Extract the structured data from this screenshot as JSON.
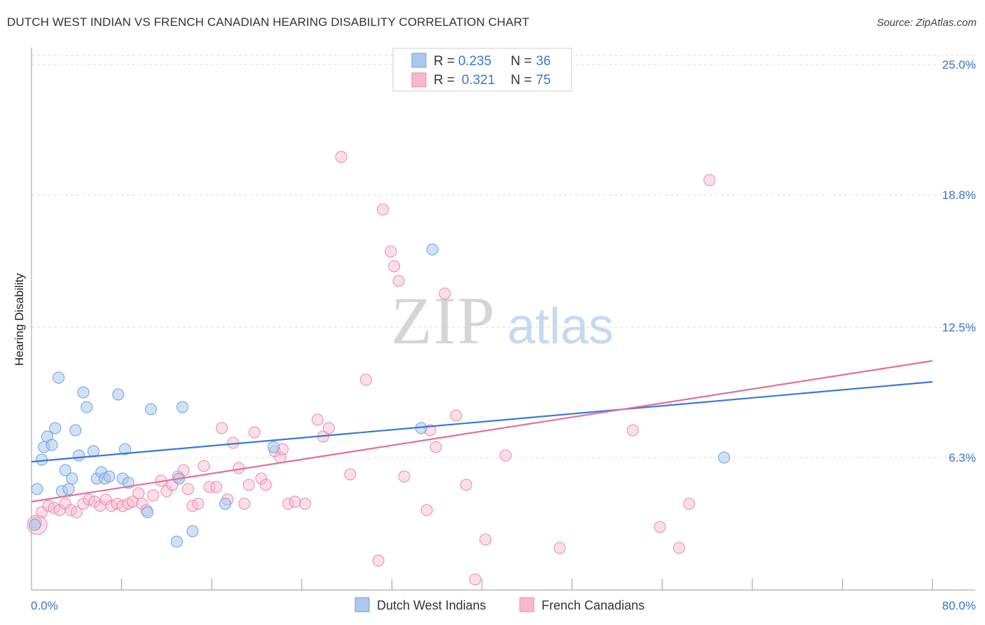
{
  "title": "DUTCH WEST INDIAN VS FRENCH CANADIAN HEARING DISABILITY CORRELATION CHART",
  "source": "Source: ZipAtlas.com",
  "watermark": {
    "zip": "ZIP",
    "atlas": "atlas"
  },
  "colors": {
    "blue": "#3a78d4",
    "blue_fill": "#aac8f0",
    "pink": "#e0709a",
    "pink_fill": "#f6b8cc",
    "tick_text": "#3b73c4"
  },
  "legend": {
    "r_label": "R =",
    "n_label": "N =",
    "rows": [
      {
        "series": "Dutch West Indians",
        "r": "0.235",
        "n": "36"
      },
      {
        "series": "French Canadians",
        "r": "0.321",
        "n": "75"
      }
    ]
  },
  "chart_data": {
    "type": "scatter",
    "title": "DUTCH WEST INDIAN VS FRENCH CANADIAN HEARING DISABILITY CORRELATION CHART",
    "xlabel": "",
    "ylabel": "Hearing Disability",
    "xlim": [
      0,
      80
    ],
    "ylim": [
      0,
      25.8
    ],
    "x_tick_labels": [
      "0.0%",
      "80.0%"
    ],
    "y_ticks": [
      6.3,
      12.5,
      18.8,
      25.0
    ],
    "y_tick_labels": [
      "6.3%",
      "12.5%",
      "18.8%",
      "25.0%"
    ],
    "grid": "horizontal dashed",
    "series": [
      {
        "name": "Dutch West Indians",
        "color": "#3a78d4",
        "trend": {
          "x": [
            0,
            80
          ],
          "y": [
            6.1,
            9.9
          ]
        },
        "points": [
          [
            0.3,
            3.1
          ],
          [
            0.5,
            4.8
          ],
          [
            0.9,
            6.2
          ],
          [
            1.1,
            6.8
          ],
          [
            1.4,
            7.3
          ],
          [
            1.8,
            6.9
          ],
          [
            2.1,
            7.7
          ],
          [
            2.4,
            10.1
          ],
          [
            2.7,
            4.7
          ],
          [
            3.0,
            5.7
          ],
          [
            3.3,
            4.8
          ],
          [
            3.6,
            5.3
          ],
          [
            3.9,
            7.6
          ],
          [
            4.2,
            6.4
          ],
          [
            4.6,
            9.4
          ],
          [
            4.9,
            8.7
          ],
          [
            5.5,
            6.6
          ],
          [
            5.8,
            5.3
          ],
          [
            6.2,
            5.6
          ],
          [
            6.5,
            5.3
          ],
          [
            6.9,
            5.4
          ],
          [
            7.7,
            9.3
          ],
          [
            8.1,
            5.3
          ],
          [
            8.3,
            6.7
          ],
          [
            8.6,
            5.1
          ],
          [
            10.3,
            3.7
          ],
          [
            10.6,
            8.6
          ],
          [
            12.9,
            2.3
          ],
          [
            13.1,
            5.3
          ],
          [
            13.4,
            8.7
          ],
          [
            14.3,
            2.8
          ],
          [
            17.2,
            4.1
          ],
          [
            21.5,
            6.8
          ],
          [
            34.6,
            7.7
          ],
          [
            35.6,
            16.2
          ],
          [
            61.5,
            6.3
          ]
        ]
      },
      {
        "name": "French Canadians",
        "color": "#e0709a",
        "trend": {
          "x": [
            0,
            80
          ],
          "y": [
            4.2,
            10.9
          ]
        },
        "points": [
          [
            0.4,
            3.2
          ],
          [
            0.9,
            3.7
          ],
          [
            1.5,
            4.0
          ],
          [
            2.0,
            3.9
          ],
          [
            2.5,
            3.8
          ],
          [
            3.0,
            4.1
          ],
          [
            3.5,
            3.8
          ],
          [
            4.0,
            3.7
          ],
          [
            4.6,
            4.1
          ],
          [
            5.1,
            4.3
          ],
          [
            5.6,
            4.2
          ],
          [
            6.1,
            4.0
          ],
          [
            6.6,
            4.3
          ],
          [
            7.1,
            4.0
          ],
          [
            7.6,
            4.1
          ],
          [
            8.1,
            4.0
          ],
          [
            8.6,
            4.1
          ],
          [
            9.0,
            4.2
          ],
          [
            9.5,
            4.6
          ],
          [
            9.8,
            4.1
          ],
          [
            10.2,
            3.8
          ],
          [
            10.8,
            4.5
          ],
          [
            11.5,
            5.2
          ],
          [
            12.0,
            4.7
          ],
          [
            12.5,
            5.0
          ],
          [
            13.0,
            5.4
          ],
          [
            13.5,
            5.7
          ],
          [
            13.9,
            4.8
          ],
          [
            14.3,
            4.0
          ],
          [
            14.8,
            4.1
          ],
          [
            15.3,
            5.9
          ],
          [
            15.8,
            4.9
          ],
          [
            16.4,
            4.9
          ],
          [
            16.9,
            7.7
          ],
          [
            17.4,
            4.3
          ],
          [
            17.9,
            7.0
          ],
          [
            18.4,
            5.8
          ],
          [
            18.9,
            4.1
          ],
          [
            19.3,
            5.0
          ],
          [
            19.8,
            7.5
          ],
          [
            20.4,
            5.3
          ],
          [
            20.8,
            5.0
          ],
          [
            21.6,
            6.6
          ],
          [
            22.1,
            6.3
          ],
          [
            22.3,
            6.7
          ],
          [
            22.8,
            4.1
          ],
          [
            23.4,
            4.2
          ],
          [
            24.3,
            4.1
          ],
          [
            25.4,
            8.1
          ],
          [
            25.9,
            7.3
          ],
          [
            26.4,
            7.7
          ],
          [
            27.5,
            20.6
          ],
          [
            28.3,
            5.5
          ],
          [
            29.7,
            10.0
          ],
          [
            30.8,
            1.4
          ],
          [
            31.2,
            18.1
          ],
          [
            31.9,
            16.1
          ],
          [
            32.2,
            15.4
          ],
          [
            32.6,
            14.7
          ],
          [
            33.1,
            5.4
          ],
          [
            35.1,
            3.8
          ],
          [
            35.4,
            7.6
          ],
          [
            35.9,
            6.8
          ],
          [
            36.7,
            14.1
          ],
          [
            37.7,
            8.3
          ],
          [
            38.6,
            5.0
          ],
          [
            39.4,
            0.5
          ],
          [
            40.3,
            2.4
          ],
          [
            42.1,
            6.4
          ],
          [
            46.9,
            2.0
          ],
          [
            53.4,
            7.6
          ],
          [
            55.8,
            3.0
          ],
          [
            57.5,
            2.0
          ],
          [
            58.4,
            4.1
          ],
          [
            60.2,
            19.5
          ]
        ]
      }
    ],
    "legend_position": "top-center"
  }
}
